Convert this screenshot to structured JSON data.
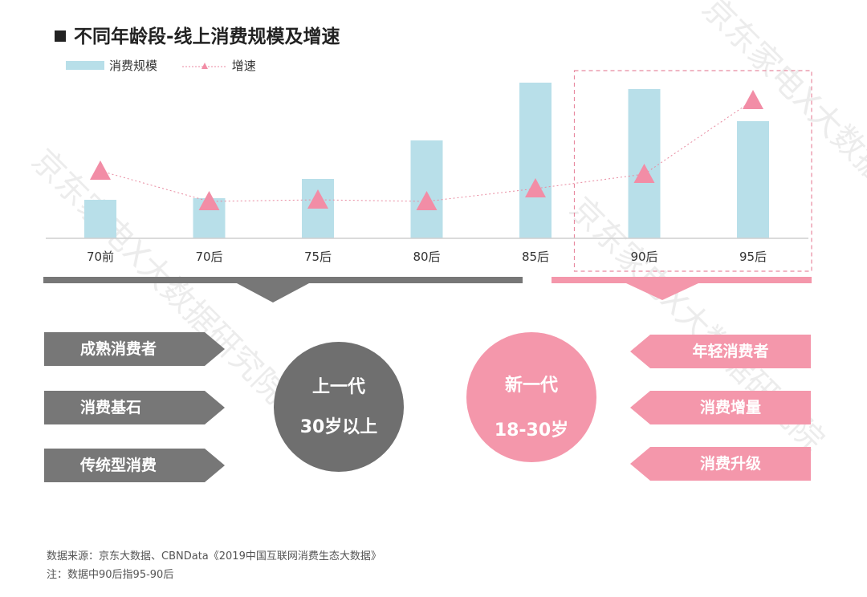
{
  "title": "不同年龄段-线上消费规模及增速",
  "legend": {
    "bar": "消费规模",
    "line": "增速"
  },
  "colors": {
    "bar": "#b8dfe9",
    "line": "#e88aa0",
    "marker": "#f28da6",
    "gray": "#777777",
    "pink": "#f497ab"
  },
  "chart_data": {
    "type": "bar",
    "categories": [
      "70前",
      "70后",
      "75后",
      "80后",
      "85后",
      "90后",
      "95后"
    ],
    "series": [
      {
        "name": "消费规模",
        "type": "bar",
        "values": [
          24,
          25,
          37,
          61,
          97,
          93,
          73
        ]
      },
      {
        "name": "增速",
        "type": "line",
        "values": [
          42,
          23,
          24,
          23,
          31,
          40,
          86
        ]
      }
    ],
    "ylim": [
      0,
      100
    ],
    "grid": false,
    "legend_position": "top-left",
    "highlight_categories": [
      "90后",
      "95后"
    ]
  },
  "left": {
    "tags": [
      "成熟消费者",
      "消费基石",
      "传统型消费"
    ],
    "circle_line1": "上一代",
    "circle_line2": "30岁以上"
  },
  "right": {
    "tags": [
      "年轻消费者",
      "消费增量",
      "消费升级"
    ],
    "circle_line1": "新一代",
    "circle_line2": "18-30岁"
  },
  "footnotes": [
    "数据来源：京东大数据、CBNData《2019中国互联网消费生态大数据》",
    "注：数据中90后指95-90后"
  ],
  "watermark": "京东家电X大数据研究院"
}
